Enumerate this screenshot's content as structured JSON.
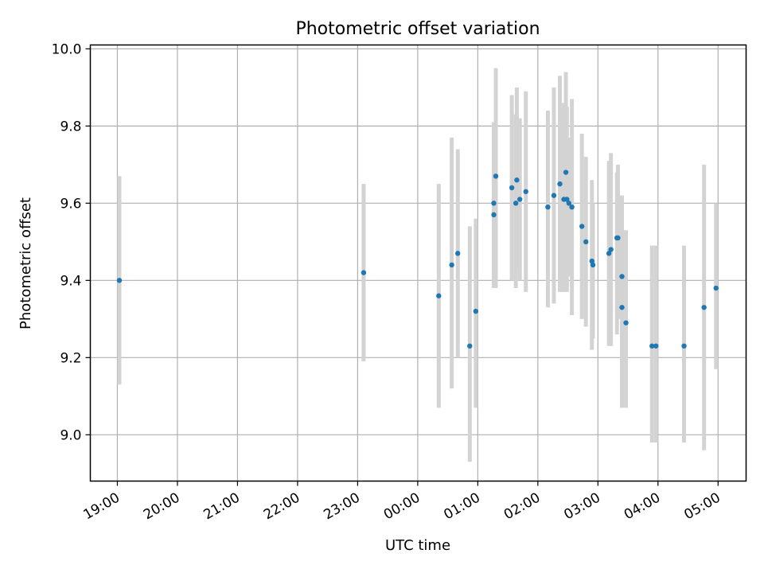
{
  "chart_data": {
    "type": "scatter",
    "title": "Photometric offset variation",
    "xlabel": "UTC time",
    "ylabel": "Photometric offset",
    "x_unit": "UTC time of day (19:00 on day 1 through 05:30 on day 2)",
    "xlim": [
      "18:33",
      "05:28"
    ],
    "ylim": [
      8.88,
      10.01
    ],
    "x_ticks": [
      "19:00",
      "20:00",
      "21:00",
      "22:00",
      "23:00",
      "00:00",
      "01:00",
      "02:00",
      "03:00",
      "04:00",
      "05:00"
    ],
    "y_ticks": [
      9.0,
      9.2,
      9.4,
      9.6,
      9.8,
      10.0
    ],
    "y_tick_labels": [
      "9.0",
      "9.2",
      "9.4",
      "9.6",
      "9.8",
      "10.0"
    ],
    "grid": true,
    "colors": {
      "points": "#1f77b4",
      "errorbars": "#d3d3d3",
      "grid": "#b0b0b0"
    },
    "series": [
      {
        "type": "errorbar",
        "points": [
          {
            "x": "19:02",
            "y": 9.4,
            "ylo": 9.13,
            "yhi": 9.67
          },
          {
            "x": "23:06",
            "y": 9.42,
            "ylo": 9.19,
            "yhi": 9.65
          },
          {
            "x": "00:21",
            "y": 9.36,
            "ylo": 9.07,
            "yhi": 9.65
          },
          {
            "x": "00:34",
            "y": 9.44,
            "ylo": 9.12,
            "yhi": 9.77
          },
          {
            "x": "00:40",
            "y": 9.47,
            "ylo": 9.2,
            "yhi": 9.74
          },
          {
            "x": "00:52",
            "y": 9.23,
            "ylo": 8.93,
            "yhi": 9.54
          },
          {
            "x": "00:58",
            "y": 9.32,
            "ylo": 9.07,
            "yhi": 9.56
          },
          {
            "x": "01:16",
            "y": 9.6,
            "ylo": 9.38,
            "yhi": 9.81
          },
          {
            "x": "01:16",
            "y": 9.57,
            "ylo": 9.38,
            "yhi": 9.8
          },
          {
            "x": "01:18",
            "y": 9.67,
            "ylo": 9.38,
            "yhi": 9.95
          },
          {
            "x": "01:34",
            "y": 9.64,
            "ylo": 9.4,
            "yhi": 9.88
          },
          {
            "x": "01:38",
            "y": 9.6,
            "ylo": 9.38,
            "yhi": 9.83
          },
          {
            "x": "01:39",
            "y": 9.66,
            "ylo": 9.43,
            "yhi": 9.9
          },
          {
            "x": "01:42",
            "y": 9.61,
            "ylo": 9.4,
            "yhi": 9.82
          },
          {
            "x": "01:48",
            "y": 9.63,
            "ylo": 9.37,
            "yhi": 9.89
          },
          {
            "x": "02:10",
            "y": 9.59,
            "ylo": 9.33,
            "yhi": 9.84
          },
          {
            "x": "02:16",
            "y": 9.62,
            "ylo": 9.34,
            "yhi": 9.9
          },
          {
            "x": "02:22",
            "y": 9.65,
            "ylo": 9.37,
            "yhi": 9.93
          },
          {
            "x": "02:26",
            "y": 9.61,
            "ylo": 9.37,
            "yhi": 9.86
          },
          {
            "x": "02:28",
            "y": 9.68,
            "ylo": 9.43,
            "yhi": 9.94
          },
          {
            "x": "02:29",
            "y": 9.61,
            "ylo": 9.37,
            "yhi": 9.85
          },
          {
            "x": "02:31",
            "y": 9.6,
            "ylo": 9.41,
            "yhi": 9.77
          },
          {
            "x": "02:34",
            "y": 9.59,
            "ylo": 9.31,
            "yhi": 9.87
          },
          {
            "x": "02:44",
            "y": 9.54,
            "ylo": 9.3,
            "yhi": 9.78
          },
          {
            "x": "02:48",
            "y": 9.5,
            "ylo": 9.28,
            "yhi": 9.72
          },
          {
            "x": "02:54",
            "y": 9.45,
            "ylo": 9.22,
            "yhi": 9.66
          },
          {
            "x": "02:55",
            "y": 9.44,
            "ylo": 9.25,
            "yhi": 9.6
          },
          {
            "x": "03:11",
            "y": 9.47,
            "ylo": 9.23,
            "yhi": 9.71
          },
          {
            "x": "03:13",
            "y": 9.48,
            "ylo": 9.23,
            "yhi": 9.73
          },
          {
            "x": "03:19",
            "y": 9.51,
            "ylo": 9.26,
            "yhi": 9.68
          },
          {
            "x": "03:20",
            "y": 9.51,
            "ylo": 9.3,
            "yhi": 9.7
          },
          {
            "x": "03:24",
            "y": 9.41,
            "ylo": 9.2,
            "yhi": 9.62
          },
          {
            "x": "03:24",
            "y": 9.33,
            "ylo": 9.07,
            "yhi": 9.6
          },
          {
            "x": "03:28",
            "y": 9.29,
            "ylo": 9.07,
            "yhi": 9.53
          },
          {
            "x": "03:54",
            "y": 9.23,
            "ylo": 8.98,
            "yhi": 9.49
          },
          {
            "x": "03:58",
            "y": 9.23,
            "ylo": 8.98,
            "yhi": 9.49
          },
          {
            "x": "04:26",
            "y": 9.23,
            "ylo": 8.98,
            "yhi": 9.49
          },
          {
            "x": "04:46",
            "y": 9.33,
            "ylo": 8.96,
            "yhi": 9.7
          },
          {
            "x": "04:58",
            "y": 9.38,
            "ylo": 9.17,
            "yhi": 9.6
          }
        ]
      }
    ]
  }
}
